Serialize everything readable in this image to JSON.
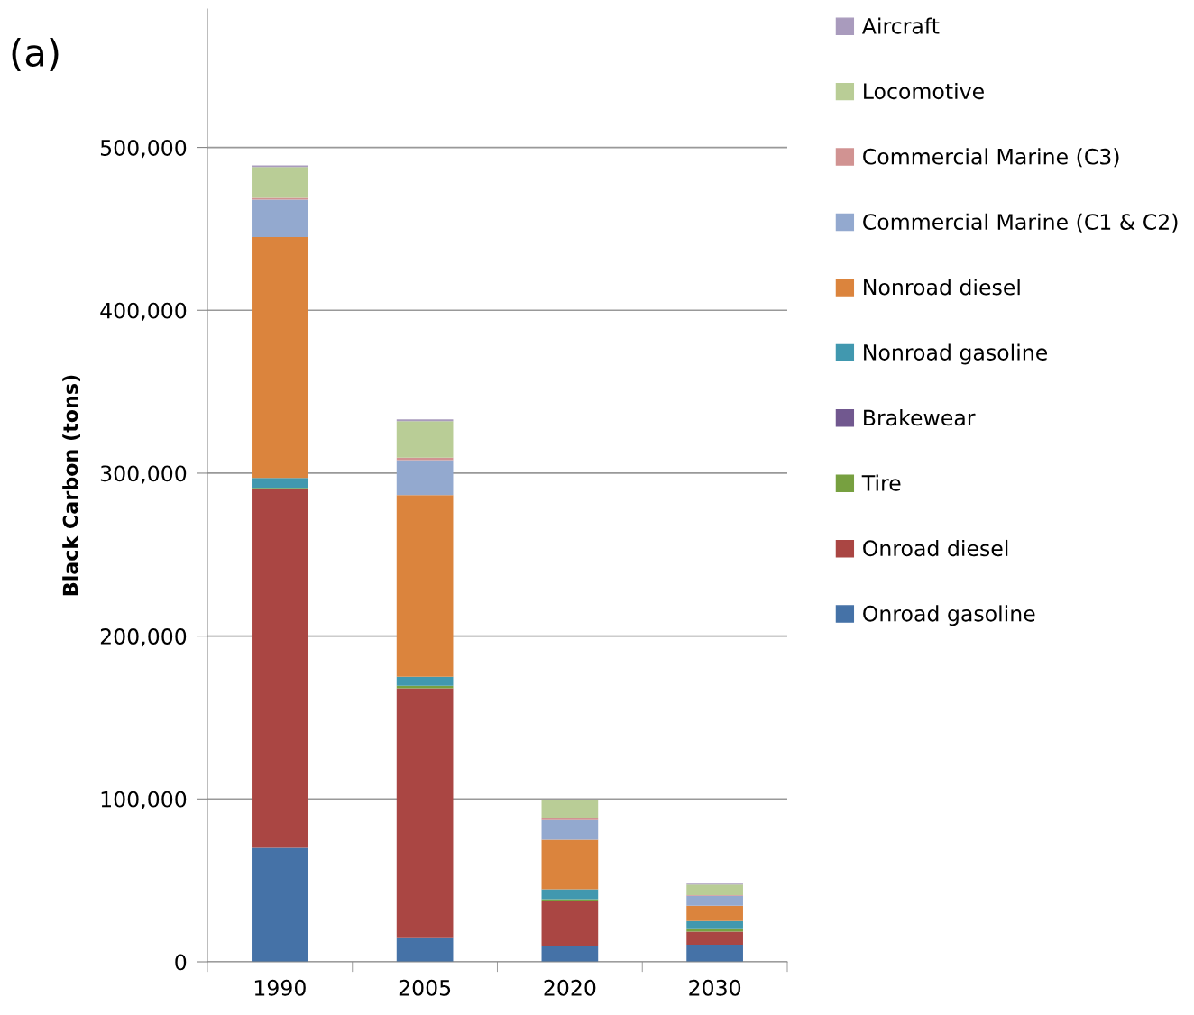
{
  "chart_data": {
    "type": "bar",
    "stacked": true,
    "title": "(a)",
    "ylabel": "Black Carbon (tons)",
    "categories": [
      "1990",
      "2005",
      "2020",
      "2030"
    ],
    "series": [
      {
        "name": "Onroad gasoline",
        "color": "#4572a7",
        "values": [
          70000,
          14500,
          9500,
          10500
        ]
      },
      {
        "name": "Onroad diesel",
        "color": "#aa4643",
        "values": [
          220500,
          153500,
          28000,
          8000
        ]
      },
      {
        "name": "Tire",
        "color": "#77a040",
        "values": [
          500,
          1500,
          1000,
          1500
        ]
      },
      {
        "name": "Brakewear",
        "color": "#71588f",
        "values": [
          null,
          null,
          null,
          null
        ]
      },
      {
        "name": "Nonroad gasoline",
        "color": "#4198af",
        "values": [
          6000,
          5500,
          6000,
          5000
        ]
      },
      {
        "name": "Nonroad diesel",
        "color": "#db843d",
        "values": [
          148000,
          111500,
          30500,
          9500
        ]
      },
      {
        "name": "Commercial Marine (C1 & C2)",
        "color": "#93a9cf",
        "values": [
          23000,
          21500,
          12000,
          6000
        ]
      },
      {
        "name": "Commercial Marine (C3)",
        "color": "#d19392",
        "values": [
          1000,
          1500,
          1000,
          500
        ]
      },
      {
        "name": "Locomotive",
        "color": "#b9cd96",
        "values": [
          19000,
          22500,
          11000,
          6500
        ]
      },
      {
        "name": "Aircraft",
        "color": "#a99bbd",
        "values": [
          1000,
          1000,
          500,
          500
        ]
      }
    ],
    "ylim": [
      0,
      585000
    ],
    "yticks": [
      {
        "value": 0,
        "label": "0"
      },
      {
        "value": 100000,
        "label": "100,000"
      },
      {
        "value": 200000,
        "label": "200,000"
      },
      {
        "value": 300000,
        "label": "300,000"
      },
      {
        "value": 400000,
        "label": "400,000"
      },
      {
        "value": 500000,
        "label": "500,000"
      }
    ],
    "grid": "y",
    "legend": "right"
  }
}
